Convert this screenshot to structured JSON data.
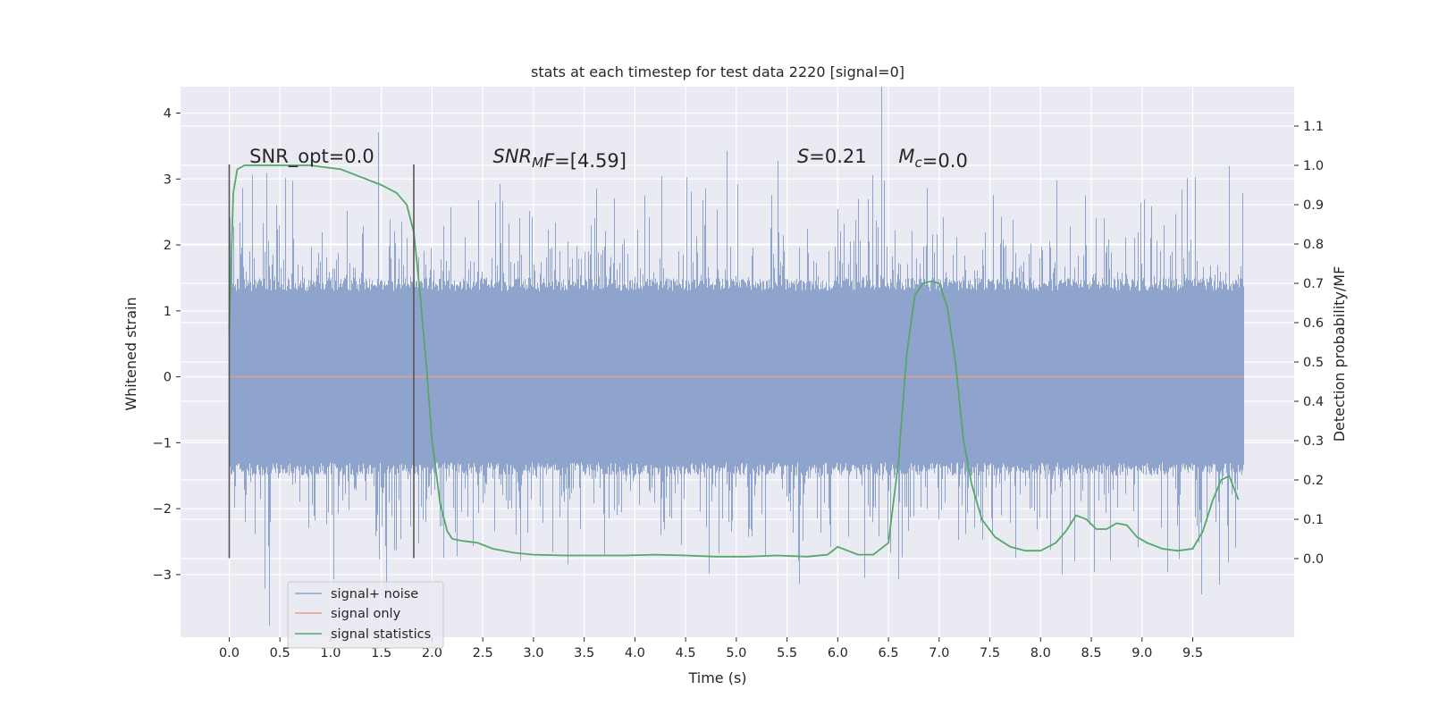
{
  "chart_data": {
    "type": "line",
    "title": "stats at each timestep for test data 2220 [signal=0]",
    "xlabel": "Time (s)",
    "ylabel_left": "Whitened strain",
    "ylabel_right": "Detection probability/MF",
    "xlim": [
      -0.48,
      10.5
    ],
    "ylim_left": [
      -3.95,
      4.4
    ],
    "ylim_right": [
      -0.2,
      1.2
    ],
    "x_ticks": [
      0.0,
      0.5,
      1.0,
      1.5,
      2.0,
      2.5,
      3.0,
      3.5,
      4.0,
      4.5,
      5.0,
      5.5,
      6.0,
      6.5,
      7.0,
      7.5,
      8.0,
      8.5,
      9.0,
      9.5
    ],
    "x_tick_labels": [
      "0.0",
      "0.5",
      "1.0",
      "1.5",
      "2.0",
      "2.5",
      "3.0",
      "3.5",
      "4.0",
      "4.5",
      "5.0",
      "5.5",
      "6.0",
      "6.5",
      "7.0",
      "7.5",
      "8.0",
      "8.5",
      "9.0",
      "9.5"
    ],
    "y_left_ticks": [
      -3,
      -2,
      -1,
      0,
      1,
      2,
      3,
      4
    ],
    "y_left_tick_labels": [
      "−3",
      "−2",
      "−1",
      "0",
      "1",
      "2",
      "3",
      "4"
    ],
    "y_right_ticks": [
      0.0,
      0.1,
      0.2,
      0.3,
      0.4,
      0.5,
      0.6,
      0.7,
      0.8,
      0.9,
      1.0,
      1.1
    ],
    "y_right_tick_labels": [
      "0.0",
      "0.1",
      "0.2",
      "0.3",
      "0.4",
      "0.5",
      "0.6",
      "0.7",
      "0.8",
      "0.9",
      "1.0",
      "1.1"
    ],
    "grid": true,
    "legend_placement": "lower-left",
    "legend": [
      "signal+ noise",
      "signal only",
      "signal statistics"
    ],
    "colors": {
      "noise": "#8fa4cc",
      "signal": "#e0a18a",
      "stats": "#55a868",
      "vline": "#555555",
      "background": "#eaeaf2"
    },
    "noise_series": {
      "name": "signal+ noise",
      "x_range": [
        0.0,
        10.0
      ],
      "sample_rate": 2048,
      "stddev": 1.0
    },
    "signal_series": {
      "name": "signal only",
      "x": [
        0.0,
        10.0
      ],
      "y": [
        0.0,
        0.0
      ]
    },
    "stats_series": {
      "name": "signal statistics",
      "x": [
        0.0,
        0.04,
        0.08,
        0.15,
        0.25,
        0.5,
        0.8,
        1.1,
        1.3,
        1.5,
        1.65,
        1.75,
        1.82,
        1.88,
        1.95,
        2.0,
        2.08,
        2.15,
        2.2,
        2.3,
        2.45,
        2.6,
        2.8,
        3.0,
        3.3,
        3.6,
        3.9,
        4.2,
        4.5,
        4.8,
        5.1,
        5.4,
        5.7,
        5.9,
        6.0,
        6.1,
        6.2,
        6.35,
        6.5,
        6.6,
        6.68,
        6.76,
        6.84,
        6.92,
        7.0,
        7.08,
        7.16,
        7.24,
        7.32,
        7.42,
        7.55,
        7.7,
        7.85,
        8.0,
        8.15,
        8.25,
        8.35,
        8.45,
        8.55,
        8.65,
        8.75,
        8.85,
        8.95,
        9.05,
        9.2,
        9.35,
        9.5,
        9.6,
        9.7,
        9.78,
        9.86,
        9.95
      ],
      "y": [
        0.58,
        0.93,
        0.99,
        1.0,
        1.0,
        1.0,
        1.0,
        0.99,
        0.97,
        0.95,
        0.93,
        0.9,
        0.83,
        0.68,
        0.47,
        0.3,
        0.14,
        0.07,
        0.05,
        0.045,
        0.04,
        0.025,
        0.015,
        0.01,
        0.008,
        0.008,
        0.008,
        0.01,
        0.008,
        0.005,
        0.005,
        0.008,
        0.005,
        0.01,
        0.03,
        0.02,
        0.01,
        0.01,
        0.04,
        0.25,
        0.52,
        0.67,
        0.7,
        0.705,
        0.7,
        0.64,
        0.5,
        0.3,
        0.19,
        0.1,
        0.055,
        0.03,
        0.02,
        0.02,
        0.04,
        0.07,
        0.11,
        0.1,
        0.075,
        0.075,
        0.09,
        0.085,
        0.055,
        0.04,
        0.025,
        0.02,
        0.025,
        0.07,
        0.15,
        0.2,
        0.21,
        0.15
      ]
    },
    "vertical_lines": [
      {
        "x": 0.0,
        "y_range": [
          -2.75,
          3.22
        ]
      },
      {
        "x": 1.82,
        "y_range": [
          -2.75,
          3.22
        ]
      }
    ],
    "annotations": [
      {
        "id": "snr-opt",
        "x": 0.2,
        "y": 3.22,
        "prefix": "SNR_opt=",
        "value": "0.0"
      },
      {
        "id": "snr-mf",
        "x": 2.6,
        "y": 3.22,
        "prefix": "SNR",
        "sub": "M",
        "suffix": "F=",
        "value": "[4.59]"
      },
      {
        "id": "s-stat",
        "x": 5.6,
        "y": 3.22,
        "prefix": "S",
        "suffix": "=",
        "value": "0.21"
      },
      {
        "id": "mc",
        "x": 6.6,
        "y": 3.22,
        "prefix": "M",
        "sub": "c",
        "suffix": "=",
        "value": "0.0"
      }
    ]
  }
}
